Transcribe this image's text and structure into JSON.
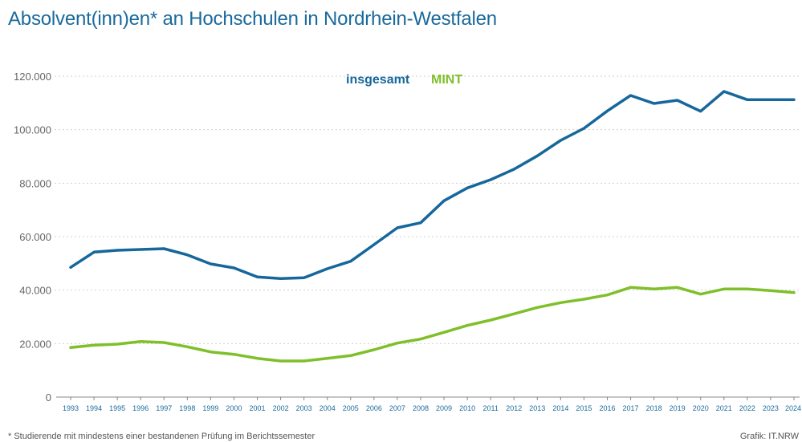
{
  "title": "Absolvent(inn)en* an Hochschulen in Nordrhein-Westfalen",
  "footnote": "* Studierende mit mindestens einer bestandenen Prüfung im Berichtssemester",
  "credit": "Grafik: IT.NRW",
  "colors": {
    "title": "#1a6a9c",
    "insgesamt": "#16679b",
    "mint": "#7fbf2a",
    "grid": "#cfcfcf",
    "axis": "#888888"
  },
  "chart_data": {
    "type": "line",
    "xlabel": "",
    "ylabel": "",
    "ylim": [
      0,
      120000
    ],
    "yticks": [
      0,
      20000,
      40000,
      60000,
      80000,
      100000,
      120000
    ],
    "ytick_labels": [
      "0",
      "20.000",
      "40.000",
      "60.000",
      "80.000",
      "100.000",
      "120.000"
    ],
    "grid": "horizontal dotted",
    "legend_position": "top-center",
    "x": [
      "1993",
      "1994",
      "1995",
      "1996",
      "1997",
      "1998",
      "1999",
      "2000",
      "2001",
      "2002",
      "2003",
      "2004",
      "2005",
      "2006",
      "2007",
      "2008",
      "2009",
      "2010",
      "2011",
      "2012",
      "2013",
      "2014",
      "2015",
      "2016",
      "2017",
      "2018",
      "2019",
      "2020",
      "2021",
      "2022",
      "2023",
      "2024"
    ],
    "series": [
      {
        "name": "insgesamt",
        "values": [
          48500,
          54200,
          54900,
          55200,
          55500,
          53200,
          49800,
          48300,
          44900,
          44300,
          44600,
          48000,
          50800,
          57000,
          63300,
          65200,
          73400,
          78200,
          81300,
          85200,
          90200,
          96000,
          100500,
          107000,
          112800,
          109800,
          111000,
          106900,
          114300,
          111200,
          111200,
          111200
        ]
      },
      {
        "name": "MINT",
        "values": [
          18500,
          19400,
          19800,
          20800,
          20400,
          18800,
          16900,
          16000,
          14500,
          13500,
          13500,
          14500,
          15500,
          17700,
          20200,
          21700,
          24200,
          26800,
          28800,
          31100,
          33500,
          35300,
          36600,
          38200,
          41000,
          40400,
          41000,
          38500,
          40400,
          40400,
          39800,
          39100
        ]
      }
    ]
  }
}
